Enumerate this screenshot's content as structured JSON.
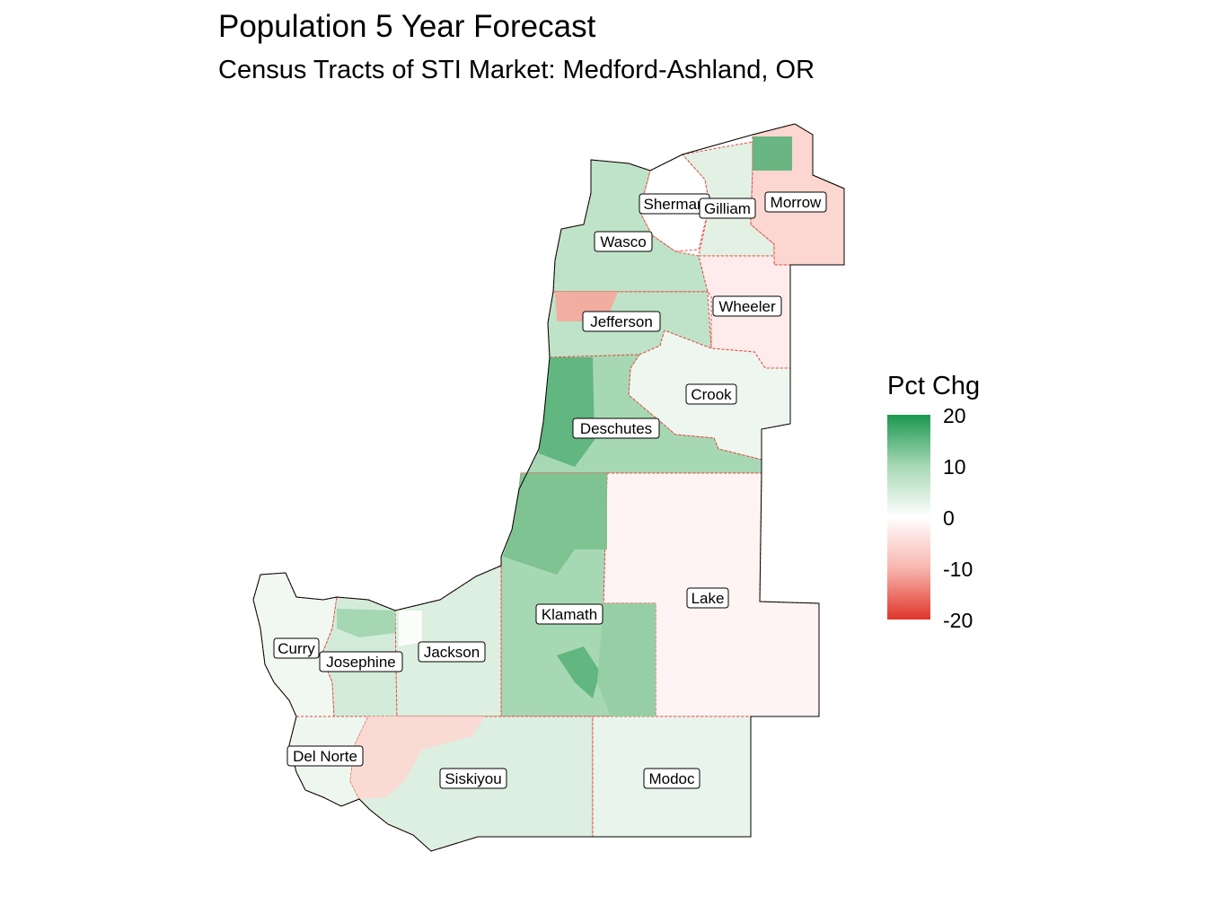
{
  "title": "Population 5 Year Forecast",
  "subtitle": "Census Tracts of STI Market: Medford-Ashland, OR",
  "legend": {
    "title": "Pct Chg",
    "ticks": [
      "20",
      "10",
      "0",
      "-10",
      "-20"
    ],
    "colors": {
      "high": "#1a9850",
      "mid": "#ffffff",
      "low": "#e0352a"
    }
  },
  "counties": [
    {
      "name": "Sherman",
      "fill": "#ffffff"
    },
    {
      "name": "Gilliam",
      "fill": "#e2f1e4"
    },
    {
      "name": "Morrow",
      "fill": "#fcd6d0"
    },
    {
      "name": "Wasco",
      "fill": "#bfe3c8"
    },
    {
      "name": "Wheeler",
      "fill": "#fdeceb"
    },
    {
      "name": "Jefferson",
      "fill": "#bfe3c8"
    },
    {
      "name": "Crook",
      "fill": "#eef7ef"
    },
    {
      "name": "Deschutes",
      "fill": "#a7d8b4"
    },
    {
      "name": "Lake",
      "fill": "#fff4f3"
    },
    {
      "name": "Klamath",
      "fill": "#a7d8b4"
    },
    {
      "name": "Curry",
      "fill": "#f1f8f2"
    },
    {
      "name": "Josephine",
      "fill": "#d3ecd9"
    },
    {
      "name": "Jackson",
      "fill": "#dcefe0"
    },
    {
      "name": "Del Norte",
      "fill": "#eef7ef"
    },
    {
      "name": "Siskiyou",
      "fill": "#dcefe0"
    },
    {
      "name": "Modoc",
      "fill": "#e9f5ec"
    }
  ]
}
